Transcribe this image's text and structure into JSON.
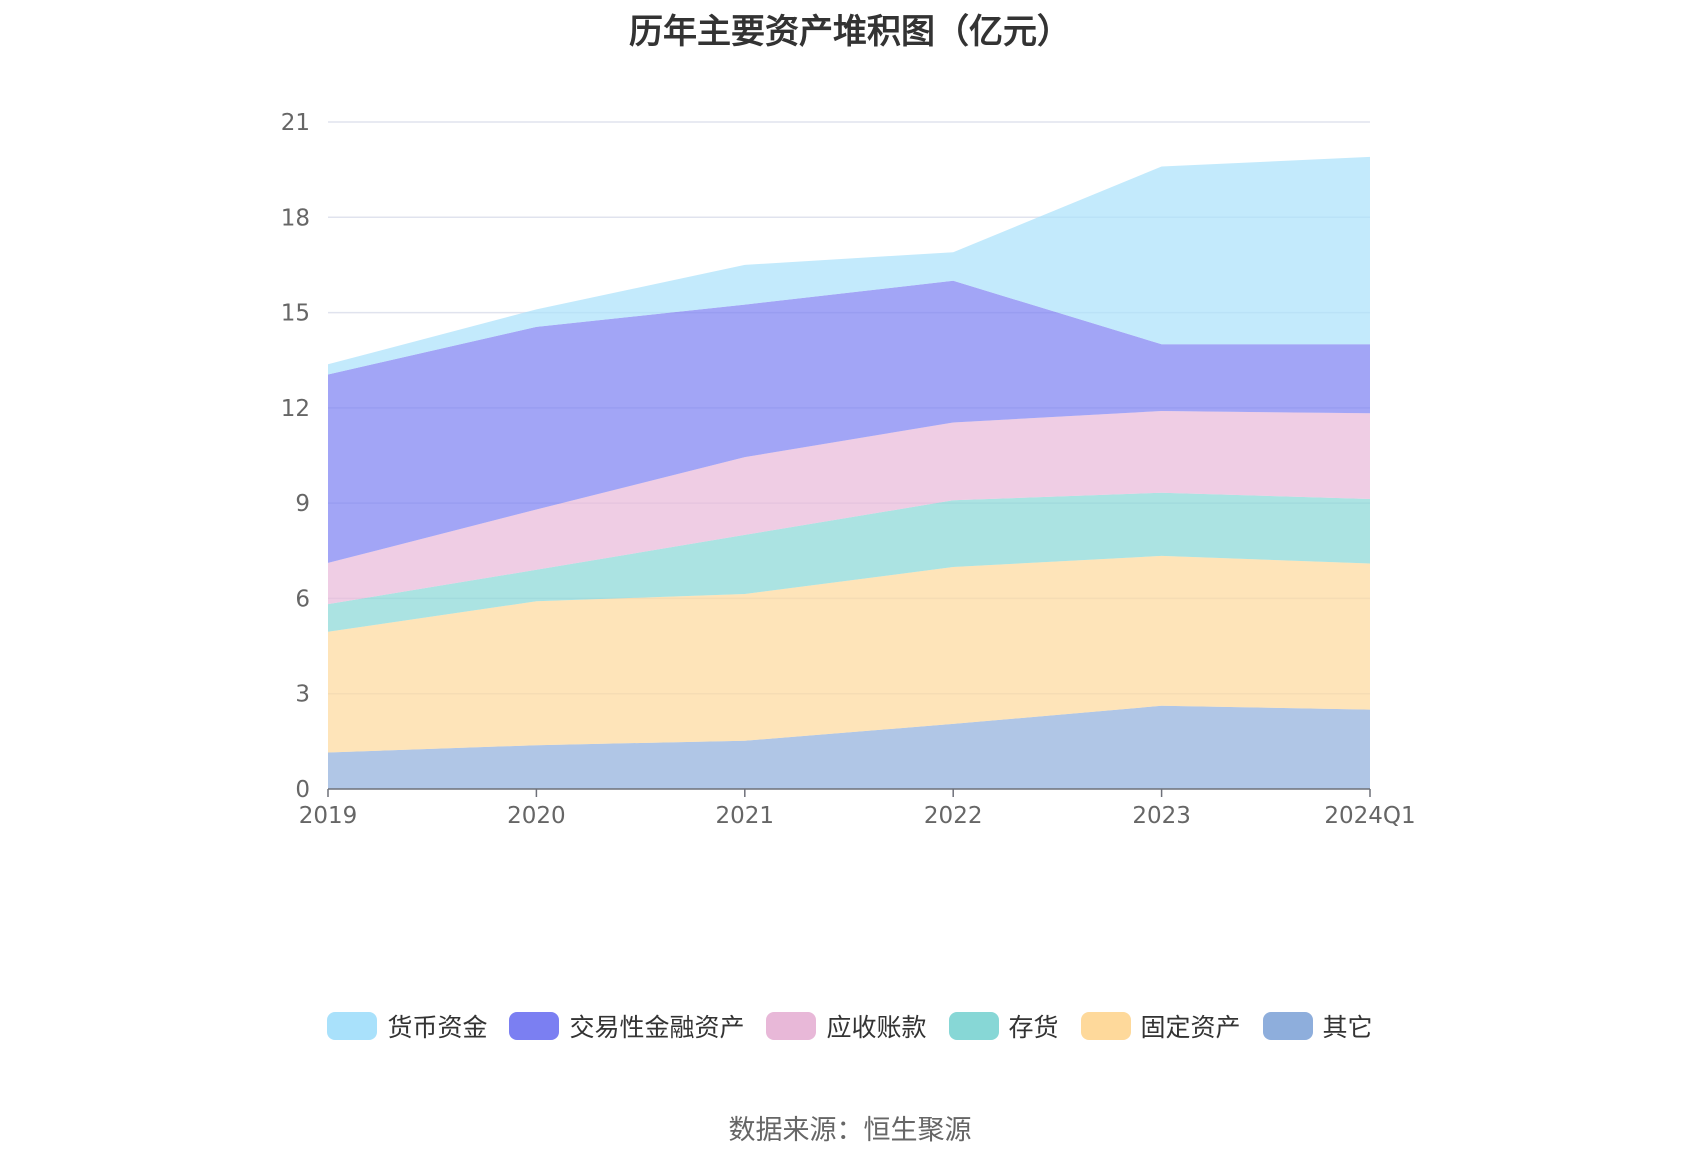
{
  "chart_data": {
    "type": "area",
    "stacked": true,
    "title": "历年主要资产堆积图（亿元）",
    "categories": [
      "2019",
      "2020",
      "2021",
      "2022",
      "2023",
      "2024Q1"
    ],
    "ylim": [
      0,
      21
    ],
    "yticks": [
      0,
      3,
      6,
      9,
      12,
      15,
      18,
      21
    ],
    "grid": true,
    "legend_position": "bottom",
    "series": [
      {
        "name": "其它",
        "color": "#8eaedc",
        "values": [
          1.15,
          1.38,
          1.52,
          2.05,
          2.62,
          2.5
        ]
      },
      {
        "name": "固定资产",
        "color": "#fed99b",
        "values": [
          3.8,
          4.53,
          4.62,
          4.94,
          4.72,
          4.6
        ]
      },
      {
        "name": "存货",
        "color": "#87d7d6",
        "values": [
          0.87,
          0.99,
          1.86,
          2.1,
          1.99,
          2.03
        ]
      },
      {
        "name": "应收账款",
        "color": "#e8b8d8",
        "values": [
          1.3,
          1.9,
          2.45,
          2.45,
          2.57,
          2.7
        ]
      },
      {
        "name": "交易性金融资产",
        "color": "#7b7ff2",
        "values": [
          5.93,
          5.75,
          4.8,
          4.46,
          2.1,
          2.17
        ]
      },
      {
        "name": "货币资金",
        "color": "#a9e1fb",
        "values": [
          0.32,
          0.55,
          1.25,
          0.9,
          5.6,
          5.9
        ]
      }
    ]
  },
  "legend_order": [
    "货币资金",
    "交易性金融资产",
    "应收账款",
    "存货",
    "固定资产",
    "其它"
  ],
  "source_note": "数据来源：恒生聚源"
}
